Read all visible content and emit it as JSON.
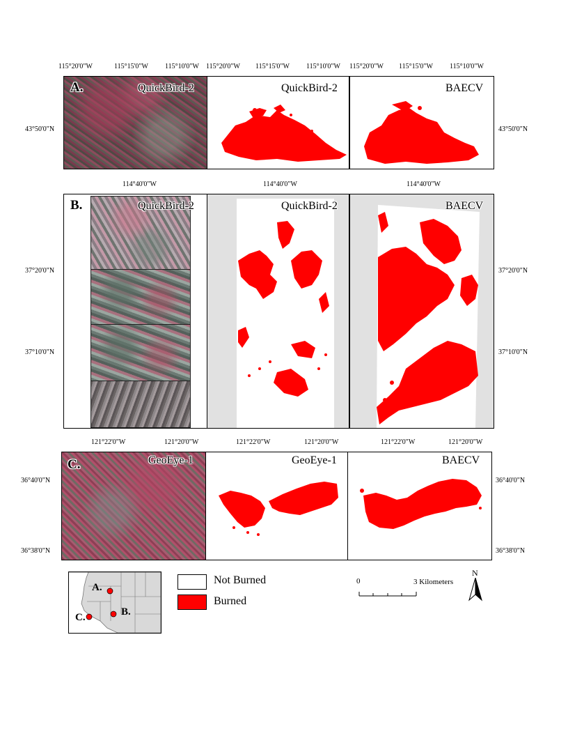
{
  "colors": {
    "burned": "#ff0000",
    "not_burned": "#ffffff",
    "nodata": "#e1e1e1",
    "frame": "#000000"
  },
  "row_a": {
    "label": "A.",
    "top_ticks": [
      "115°20'0\"W",
      "115°15'0\"W",
      "115°10'0\"W",
      "115°20'0\"W",
      "115°15'0\"W",
      "115°10'0\"W",
      "115°20'0\"W",
      "115°15'0\"W",
      "115°10'0\"W"
    ],
    "left_tick": "43°50'0\"N",
    "right_tick": "43°50'0\"N",
    "titles": [
      "QuickBird-2",
      "QuickBird-2",
      "BAECV"
    ]
  },
  "row_b": {
    "label": "B.",
    "top_ticks": [
      "114°40'0\"W",
      "114°40'0\"W",
      "114°40'0\"W"
    ],
    "left_ticks": [
      "37°20'0\"N",
      "37°10'0\"N"
    ],
    "right_ticks": [
      "37°20'0\"N",
      "37°10'0\"N"
    ],
    "titles": [
      "QuickBird-2",
      "QuickBird-2",
      "BAECV"
    ]
  },
  "row_c": {
    "label": "C.",
    "top_ticks": [
      "121°22'0\"W",
      "121°20'0\"W",
      "121°22'0\"W",
      "121°20'0\"W",
      "121°22'0\"W",
      "121°20'0\"W"
    ],
    "left_ticks": [
      "36°40'0\"N",
      "36°38'0\"N"
    ],
    "right_ticks": [
      "36°40'0\"N",
      "36°38'0\"N"
    ],
    "titles": [
      "GeoEye-1",
      "GeoEye-1",
      "BAECV"
    ]
  },
  "locator": {
    "labels": [
      "A.",
      "B.",
      "C."
    ]
  },
  "legend": {
    "not_burned": "Not Burned",
    "burned": "Burned"
  },
  "scalebar": {
    "start": "0",
    "end": "3 Kilometers"
  },
  "north": {
    "label": "N"
  }
}
